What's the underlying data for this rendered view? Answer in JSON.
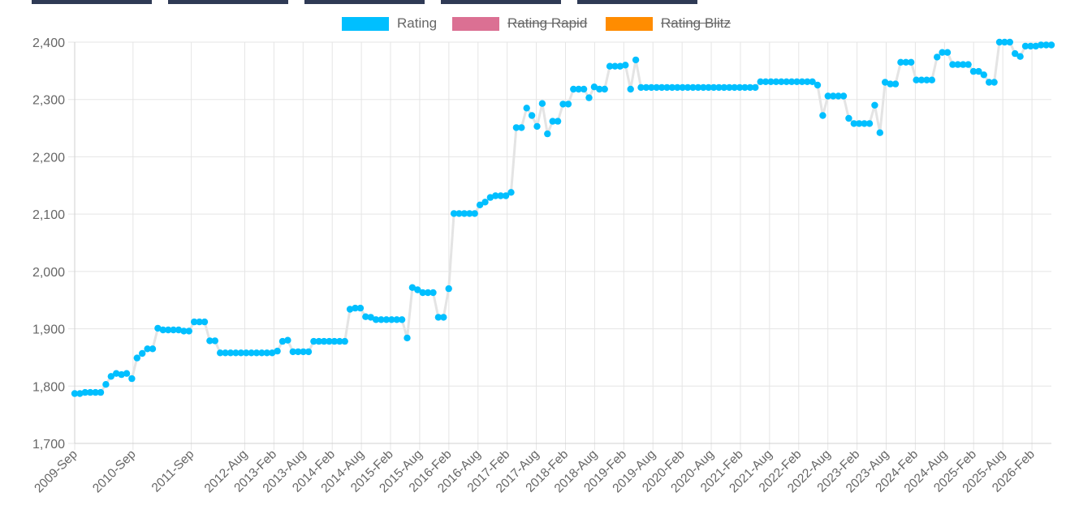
{
  "top_tabs": [
    {
      "name": "tab-1"
    },
    {
      "name": "tab-2"
    },
    {
      "name": "tab-3"
    },
    {
      "name": "tab-4"
    },
    {
      "name": "tab-5"
    }
  ],
  "colors": {
    "rating": "#00bfff",
    "rating_line": "#e4e4e4",
    "rating_rapid": "#db7093",
    "rating_blitz": "#ff8c00",
    "grid": "#e5e5e5",
    "axis_text": "#666666",
    "top_tab": "#2f3a55"
  },
  "chart_data": {
    "type": "line",
    "legend_position": "top",
    "grid": true,
    "ylim": [
      1700,
      2400
    ],
    "y_ticks": [
      "1,700",
      "1,800",
      "1,900",
      "2,000",
      "2,100",
      "2,200",
      "2,300",
      "2,400"
    ],
    "y_tick_values": [
      1700,
      1800,
      1900,
      2000,
      2100,
      2200,
      2300,
      2400
    ],
    "x_start": "2009-Sep",
    "x_ticks": [
      "2009-Sep",
      "2010-Sep",
      "2011-Sep",
      "2012-Aug",
      "2013-Feb",
      "2013-Aug",
      "2014-Feb",
      "2014-Aug",
      "2015-Feb",
      "2015-Aug",
      "2016-Feb",
      "2016-Aug",
      "2017-Feb",
      "2017-Aug",
      "2018-Feb",
      "2018-Aug",
      "2019-Feb",
      "2019-Aug",
      "2020-Feb",
      "2020-Aug",
      "2021-Feb",
      "2021-Aug",
      "2022-Feb",
      "2022-Aug",
      "2023-Feb",
      "2023-Aug",
      "2024-Feb",
      "2024-Aug",
      "2025-Feb",
      "2025-Aug",
      "2026-Feb"
    ],
    "series": [
      {
        "name": "Rating",
        "visible": true,
        "values": [
          1787,
          1787,
          1789,
          1789,
          1789,
          1789,
          1803,
          1817,
          1822,
          1820,
          1822,
          1813,
          1849,
          1857,
          1865,
          1865,
          1901,
          1898,
          1898,
          1898,
          1898,
          1896,
          1896,
          1912,
          1912,
          1912,
          1879,
          1879,
          1858,
          1858,
          1858,
          1858,
          1858,
          1858,
          1858,
          1858,
          1858,
          1858,
          1858,
          1861,
          1878,
          1880,
          1860,
          1860,
          1860,
          1860,
          1878,
          1878,
          1878,
          1878,
          1878,
          1878,
          1878,
          1934,
          1936,
          1936,
          1921,
          1920,
          1916,
          1916,
          1916,
          1916,
          1916,
          1916,
          1884,
          1972,
          1968,
          1963,
          1963,
          1963,
          1920,
          1920,
          1970,
          2101,
          2101,
          2101,
          2101,
          2101,
          2116,
          2121,
          2129,
          2132,
          2132,
          2132,
          2138,
          2251,
          2251,
          2285,
          2272,
          2253,
          2293,
          2240,
          2262,
          2262,
          2292,
          2292,
          2318,
          2318,
          2318,
          2303,
          2322,
          2318,
          2318,
          2358,
          2358,
          2358,
          2360,
          2318,
          2369,
          2321,
          2321,
          2321,
          2321,
          2321,
          2321,
          2321,
          2321,
          2321,
          2321,
          2321,
          2321,
          2321,
          2321,
          2321,
          2321,
          2321,
          2321,
          2321,
          2321,
          2321,
          2321,
          2321,
          2331,
          2331,
          2331,
          2331,
          2331,
          2331,
          2331,
          2331,
          2331,
          2331,
          2331,
          2325,
          2272,
          2306,
          2306,
          2306,
          2306,
          2267,
          2258,
          2258,
          2258,
          2258,
          2290,
          2242,
          2330,
          2327,
          2327,
          2365,
          2365,
          2365,
          2334,
          2334,
          2334,
          2334,
          2374,
          2382,
          2382,
          2361,
          2361,
          2361,
          2361,
          2349,
          2349,
          2343,
          2330,
          2330,
          2400,
          2400,
          2400,
          2380,
          2375,
          2393,
          2393,
          2393,
          2395,
          2395,
          2395
        ]
      },
      {
        "name": "Rating Rapid",
        "visible": false,
        "values": []
      },
      {
        "name": "Rating Blitz",
        "visible": false,
        "values": []
      }
    ]
  }
}
